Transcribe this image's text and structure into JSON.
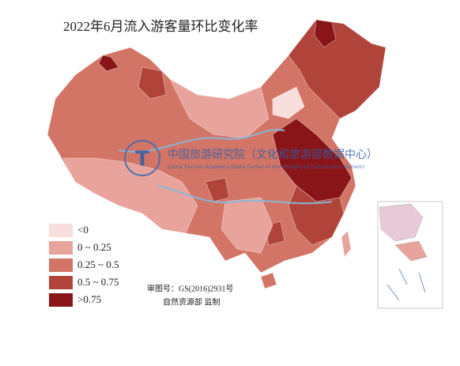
{
  "title": "2022年6月流入游客量环比变化率",
  "legend": {
    "items": [
      {
        "label": "<0",
        "color": "#f8dedd"
      },
      {
        "label": "0 ~ 0.25",
        "color": "#e8a49c"
      },
      {
        "label": "0.25 ~ 0.5",
        "color": "#d27566"
      },
      {
        "label": "0.5 ~ 0.75",
        "color": "#b1443a"
      },
      {
        "label": ">0.75",
        "color": "#8a1519"
      }
    ]
  },
  "watermark": {
    "name": "中国旅游研究院（文化和旅游部数据中心）",
    "name_en": "China Tourism Academy (Data Center of the Ministry of Culture and Tourism)"
  },
  "approval": "审图号：GS(2016)2931号",
  "supervisor": "自然资源部 监制"
}
